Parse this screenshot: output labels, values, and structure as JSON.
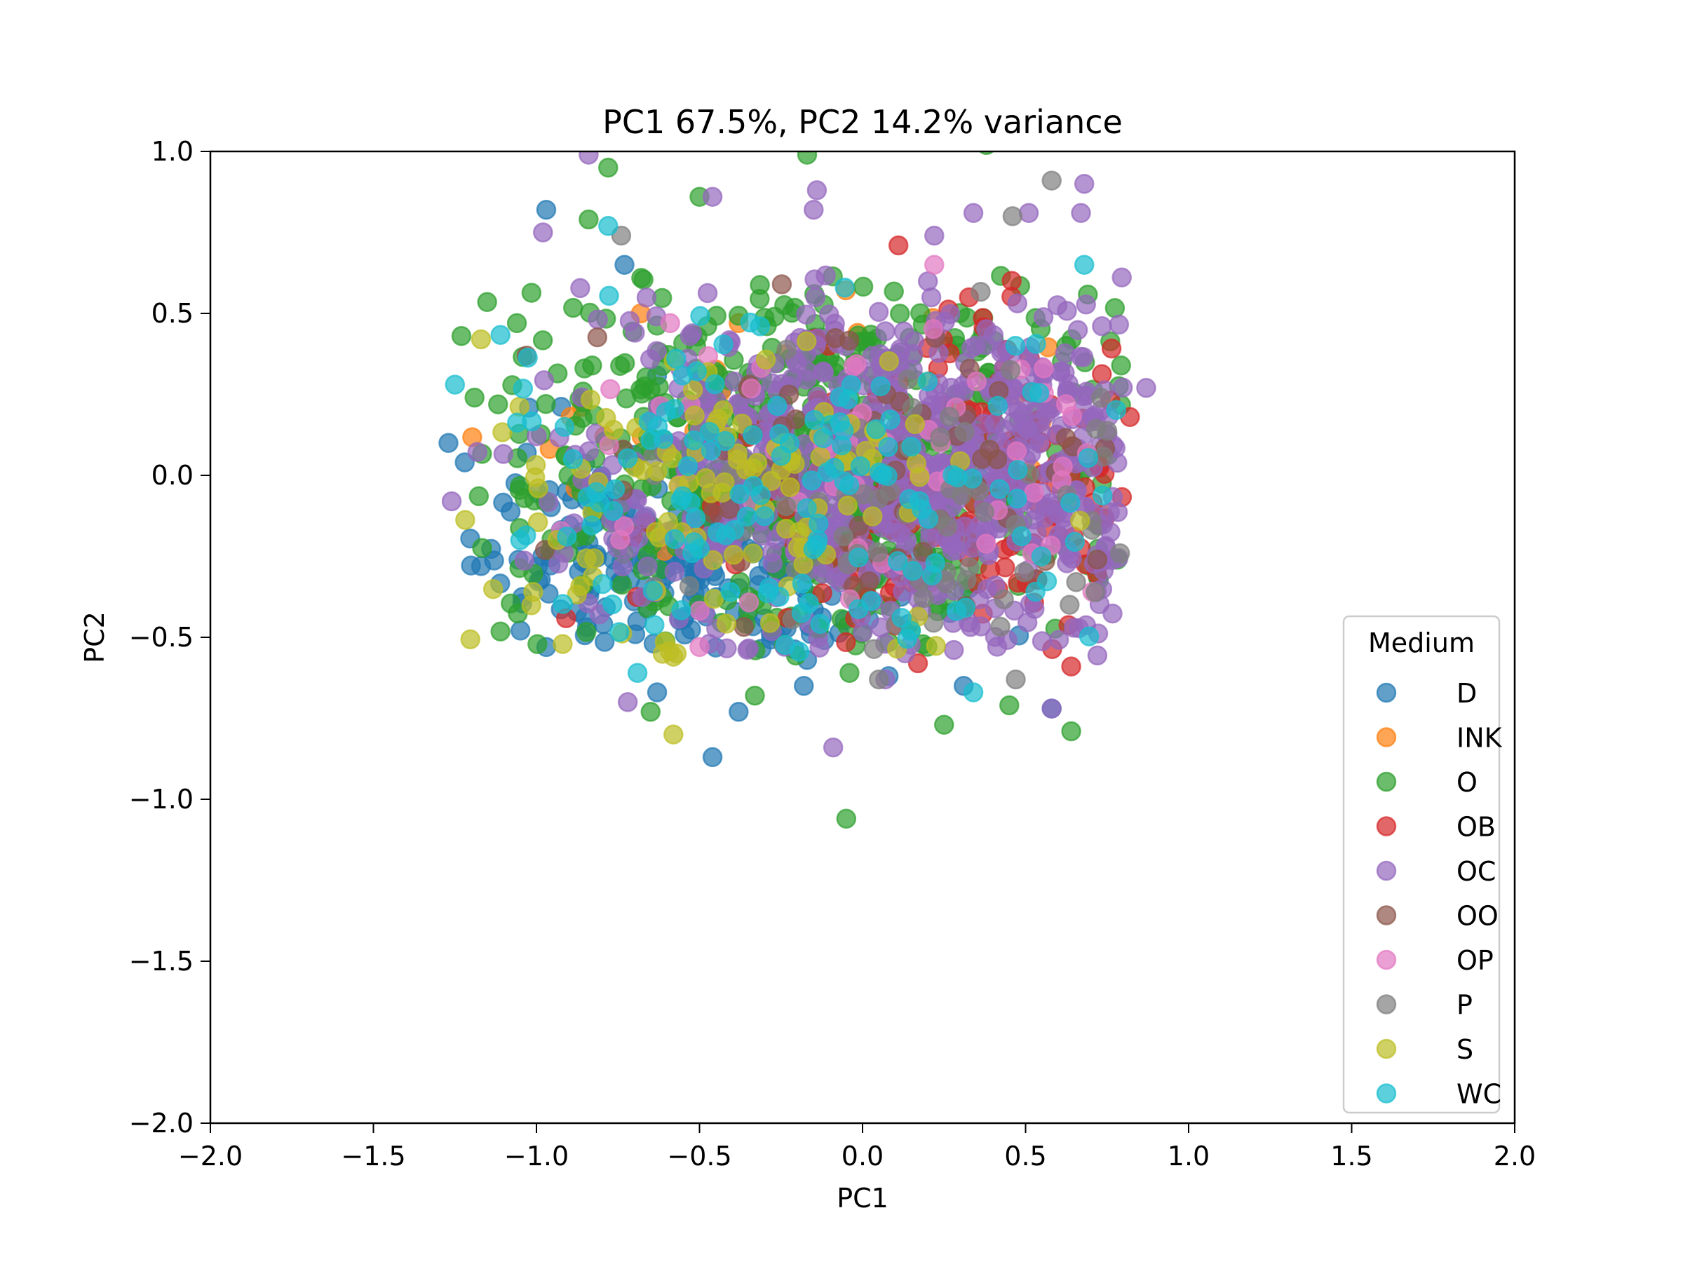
{
  "chart_data": {
    "type": "scatter",
    "title": "PC1 67.5%, PC2 14.2% variance",
    "xlabel": "PC1",
    "ylabel": "PC2",
    "xlim": [
      -2.0,
      2.0
    ],
    "ylim": [
      -2.0,
      1.0
    ],
    "xticks": [
      "−2.0",
      "−1.5",
      "−1.0",
      "−0.5",
      "0.0",
      "0.5",
      "1.0",
      "1.5",
      "2.0"
    ],
    "xtick_values": [
      -2.0,
      -1.5,
      -1.0,
      -0.5,
      0.0,
      0.5,
      1.0,
      1.5,
      2.0
    ],
    "yticks": [
      "1.0",
      "0.5",
      "0.0",
      "−0.5",
      "−1.0",
      "−1.5",
      "−2.0"
    ],
    "ytick_values": [
      1.0,
      0.5,
      0.0,
      -0.5,
      -1.0,
      -1.5,
      -2.0
    ],
    "grid": false,
    "marker_alpha": 0.7,
    "legend": {
      "title": "Medium",
      "position": "lower right",
      "entries": [
        "D",
        "INK",
        "O",
        "OB",
        "OC",
        "OO",
        "OP",
        "P",
        "S",
        "WC"
      ]
    },
    "series": [
      {
        "name": "D",
        "color": "#1f77b4",
        "count": 260,
        "center": [
          -0.55,
          -0.25
        ],
        "spread": [
          0.35,
          0.18
        ],
        "notable_points": [
          [
            -0.97,
            0.82
          ],
          [
            -0.73,
            0.65
          ],
          [
            -1.27,
            0.1
          ],
          [
            -1.22,
            0.04
          ],
          [
            -1.17,
            -0.28
          ],
          [
            -0.97,
            -0.53
          ],
          [
            -0.63,
            -0.67
          ],
          [
            -0.46,
            -0.87
          ],
          [
            -0.38,
            -0.73
          ],
          [
            -0.17,
            -0.57
          ],
          [
            -0.18,
            -0.65
          ],
          [
            0.08,
            -0.62
          ],
          [
            0.31,
            -0.65
          ],
          [
            0.58,
            -0.72
          ]
        ]
      },
      {
        "name": "INK",
        "color": "#ff7f0e",
        "count": 35,
        "center": [
          -0.2,
          0.1
        ],
        "spread": [
          0.45,
          0.2
        ],
        "notable_points": [
          [
            -0.88,
            -0.04
          ],
          [
            -0.68,
            0.5
          ],
          [
            -0.38,
            0.47
          ],
          [
            0.0,
            0.0
          ],
          [
            0.21,
            -0.33
          ],
          [
            0.73,
            -0.27
          ]
        ]
      },
      {
        "name": "O",
        "color": "#2ca02c",
        "count": 620,
        "center": [
          -0.1,
          0.05
        ],
        "spread": [
          0.5,
          0.28
        ],
        "notable_points": [
          [
            -0.78,
            0.95
          ],
          [
            -0.17,
            0.99
          ],
          [
            0.38,
            1.02
          ],
          [
            -0.5,
            0.86
          ],
          [
            -0.84,
            0.79
          ],
          [
            -1.23,
            0.43
          ],
          [
            -1.06,
            0.47
          ],
          [
            -1.19,
            0.24
          ],
          [
            -0.05,
            -1.06
          ],
          [
            0.25,
            -0.77
          ],
          [
            0.45,
            -0.71
          ],
          [
            0.64,
            -0.79
          ],
          [
            -0.65,
            -0.73
          ],
          [
            -0.33,
            -0.68
          ],
          [
            -0.04,
            -0.61
          ]
        ]
      },
      {
        "name": "OB",
        "color": "#d62728",
        "count": 170,
        "center": [
          0.35,
          -0.05
        ],
        "spread": [
          0.38,
          0.25
        ],
        "notable_points": [
          [
            0.11,
            0.71
          ],
          [
            0.82,
            0.18
          ],
          [
            0.64,
            -0.59
          ],
          [
            0.17,
            -0.58
          ],
          [
            -0.29,
            -0.05
          ]
        ]
      },
      {
        "name": "OC",
        "color": "#9467bd",
        "count": 700,
        "center": [
          0.15,
          0.05
        ],
        "spread": [
          0.5,
          0.28
        ],
        "notable_points": [
          [
            -0.84,
            0.99
          ],
          [
            -0.46,
            0.86
          ],
          [
            -0.98,
            0.75
          ],
          [
            -0.14,
            0.88
          ],
          [
            -0.15,
            0.82
          ],
          [
            0.22,
            0.74
          ],
          [
            0.34,
            0.81
          ],
          [
            0.51,
            0.81
          ],
          [
            0.68,
            0.9
          ],
          [
            0.67,
            0.81
          ],
          [
            0.87,
            0.27
          ],
          [
            -1.26,
            -0.08
          ],
          [
            -0.72,
            -0.7
          ],
          [
            -0.09,
            -0.84
          ],
          [
            0.07,
            -0.63
          ],
          [
            0.58,
            -0.72
          ]
        ]
      },
      {
        "name": "OO",
        "color": "#8c564b",
        "count": 60,
        "center": [
          0.1,
          0.05
        ],
        "spread": [
          0.5,
          0.25
        ],
        "notable_points": [
          [
            -1.03,
            0.37
          ],
          [
            0.72,
            -0.26
          ]
        ]
      },
      {
        "name": "OP",
        "color": "#e377c2",
        "count": 55,
        "center": [
          0.1,
          0.05
        ],
        "spread": [
          0.5,
          0.25
        ],
        "notable_points": [
          [
            0.22,
            0.65
          ],
          [
            -0.59,
            0.47
          ],
          [
            0.35,
            0.29
          ],
          [
            -0.5,
            -0.53
          ]
        ]
      },
      {
        "name": "P",
        "color": "#7f7f7f",
        "count": 70,
        "center": [
          0.3,
          -0.05
        ],
        "spread": [
          0.45,
          0.28
        ],
        "notable_points": [
          [
            0.58,
            0.91
          ],
          [
            0.46,
            0.8
          ],
          [
            -0.74,
            0.74
          ],
          [
            0.47,
            -0.63
          ],
          [
            0.05,
            -0.63
          ]
        ]
      },
      {
        "name": "S",
        "color": "#bcbd22",
        "count": 110,
        "center": [
          -0.45,
          -0.1
        ],
        "spread": [
          0.45,
          0.25
        ],
        "notable_points": [
          [
            -1.17,
            0.42
          ],
          [
            -1.01,
            -0.36
          ],
          [
            -0.58,
            -0.8
          ],
          [
            -0.58,
            -0.56
          ],
          [
            -0.57,
            -0.55
          ]
        ]
      },
      {
        "name": "WC",
        "color": "#17becf",
        "count": 140,
        "center": [
          -0.2,
          -0.05
        ],
        "spread": [
          0.55,
          0.28
        ],
        "notable_points": [
          [
            -0.78,
            0.77
          ],
          [
            -1.25,
            0.28
          ],
          [
            -1.05,
            -0.2
          ],
          [
            -0.69,
            -0.61
          ],
          [
            0.12,
            -0.44
          ],
          [
            0.34,
            -0.67
          ],
          [
            0.68,
            0.65
          ]
        ]
      }
    ]
  }
}
